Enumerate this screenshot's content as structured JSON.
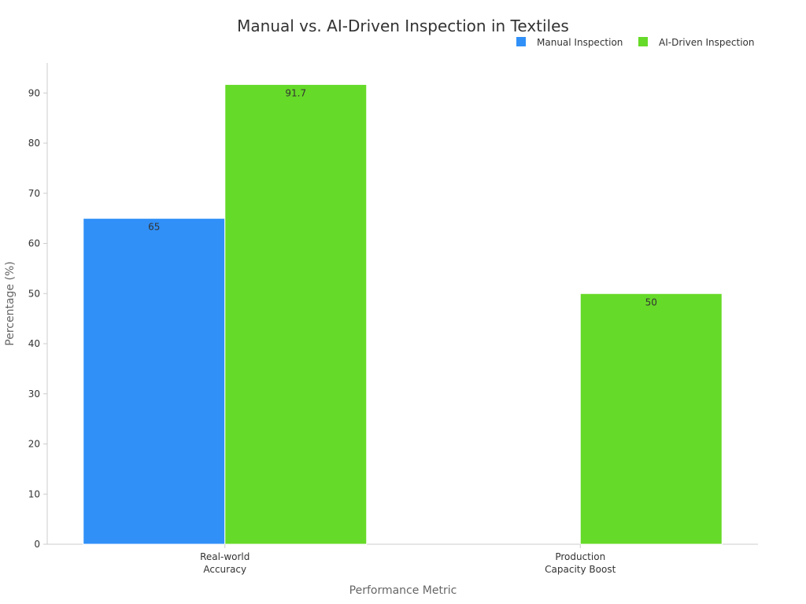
{
  "chart_data": {
    "type": "bar",
    "title": "Manual vs. AI-Driven Inspection in Textiles",
    "xlabel": "Performance Metric",
    "ylabel": "Percentage (%)",
    "categories": [
      [
        "Real-world",
        "Accuracy"
      ],
      [
        "Production",
        "Capacity Boost"
      ]
    ],
    "series": [
      {
        "name": "Manual Inspection",
        "color": "#3090f8",
        "values": [
          65,
          null
        ]
      },
      {
        "name": "AI-Driven Inspection",
        "color": "#66da28",
        "values": [
          91.7,
          50
        ]
      }
    ],
    "ylim": [
      0,
      96
    ],
    "yticks": [
      0,
      10,
      20,
      30,
      40,
      50,
      60,
      70,
      80,
      90
    ],
    "grid": false,
    "legend_position": "top-right"
  }
}
